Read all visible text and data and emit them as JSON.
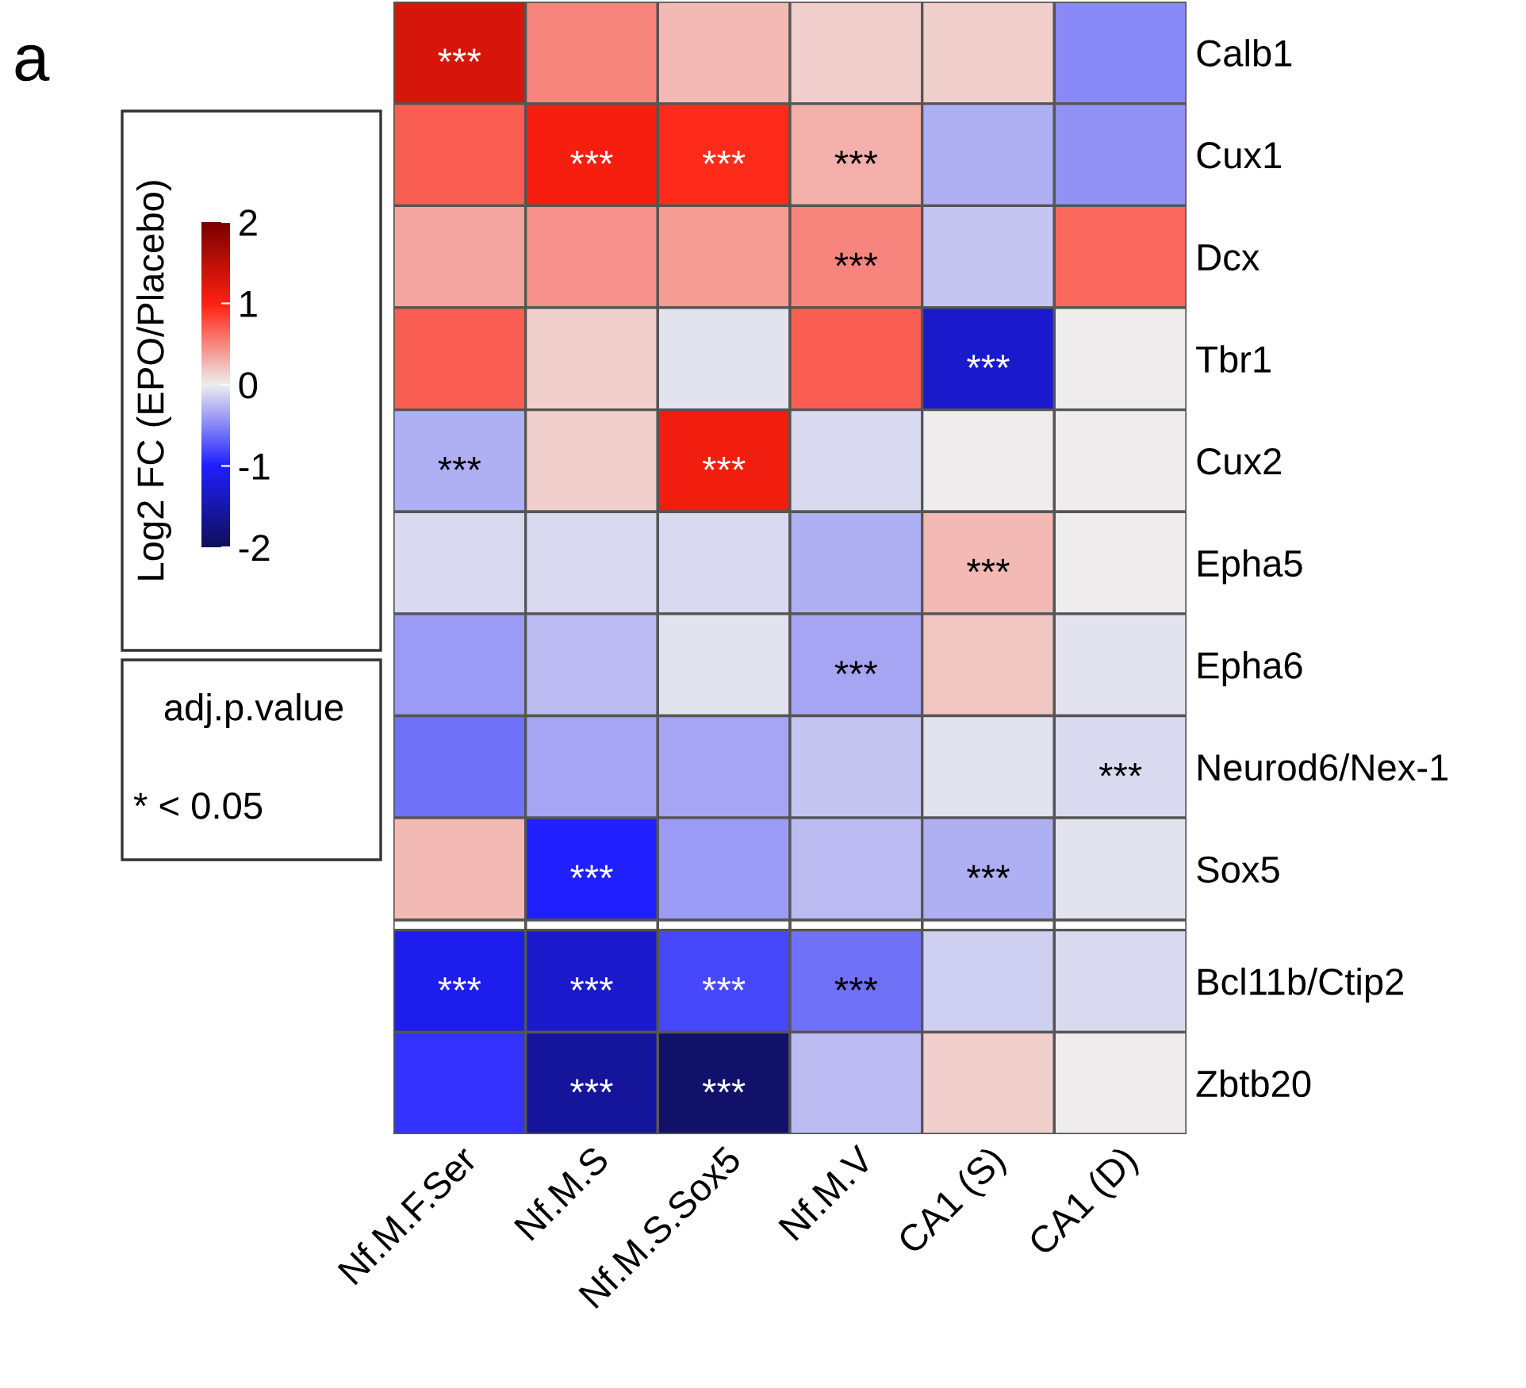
{
  "chart_data": {
    "type": "heatmap",
    "categories": [
      "Nf.M.F.Ser",
      "Nf.M.S",
      "Nf.M.S.Sox5",
      "Nf.M.V",
      "CA1 (S)",
      "CA1 (D)"
    ],
    "y_categories": [
      "Calb1",
      "Cux1",
      "Dcx",
      "Tbr1",
      "Cux2",
      "Epha5",
      "Epha6",
      "Neurod6/Nex-1",
      "Sox5",
      "Bcl11b/Ctip2",
      "Zbtb20"
    ],
    "cells": [
      [
        1.3,
        0.5,
        0.25,
        0.15,
        0.15,
        -0.5
      ],
      [
        0.7,
        1.05,
        0.95,
        0.3,
        -0.3,
        -0.45
      ],
      [
        0.35,
        0.45,
        0.4,
        0.5,
        -0.2,
        0.65
      ],
      [
        0.7,
        0.15,
        -0.05,
        0.7,
        -1.3,
        0
      ],
      [
        -0.3,
        0.15,
        1.1,
        -0.1,
        0,
        0
      ],
      [
        -0.1,
        -0.1,
        -0.1,
        -0.3,
        0.25,
        0
      ],
      [
        -0.4,
        -0.25,
        -0.05,
        -0.35,
        0.2,
        -0.05
      ],
      [
        -0.6,
        -0.35,
        -0.35,
        -0.2,
        -0.05,
        -0.1
      ],
      [
        0.25,
        -1.0,
        -0.4,
        -0.25,
        -0.3,
        -0.05
      ],
      [
        -1.1,
        -1.3,
        -0.8,
        -0.6,
        -0.15,
        -0.1
      ],
      [
        -0.9,
        -1.6,
        -1.9,
        -0.25,
        0.15,
        0
      ]
    ],
    "cell_labels": [
      [
        "***",
        null,
        null,
        null,
        null,
        null
      ],
      [
        null,
        "***",
        "***",
        "***",
        null,
        null
      ],
      [
        null,
        null,
        null,
        "***",
        null,
        null
      ],
      [
        null,
        null,
        null,
        null,
        "***",
        null
      ],
      [
        "***",
        null,
        "***",
        null,
        null,
        null
      ],
      [
        null,
        null,
        null,
        null,
        "***",
        null
      ],
      [
        null,
        null,
        null,
        "***",
        null,
        null
      ],
      [
        null,
        null,
        null,
        null,
        null,
        "***"
      ],
      [
        null,
        "***",
        null,
        null,
        "***",
        null
      ],
      [
        "***",
        "***",
        "***",
        "***",
        null,
        null
      ],
      [
        null,
        "***",
        "***",
        null,
        null,
        null
      ]
    ],
    "clim": [
      -2,
      2
    ],
    "cticks": [
      -2,
      -1,
      0,
      1,
      2
    ],
    "clabel": "Log2 FC (EPO/Placebo)",
    "annotations": [
      "a",
      "adj.p.value",
      "* < 0.05"
    ]
  }
}
